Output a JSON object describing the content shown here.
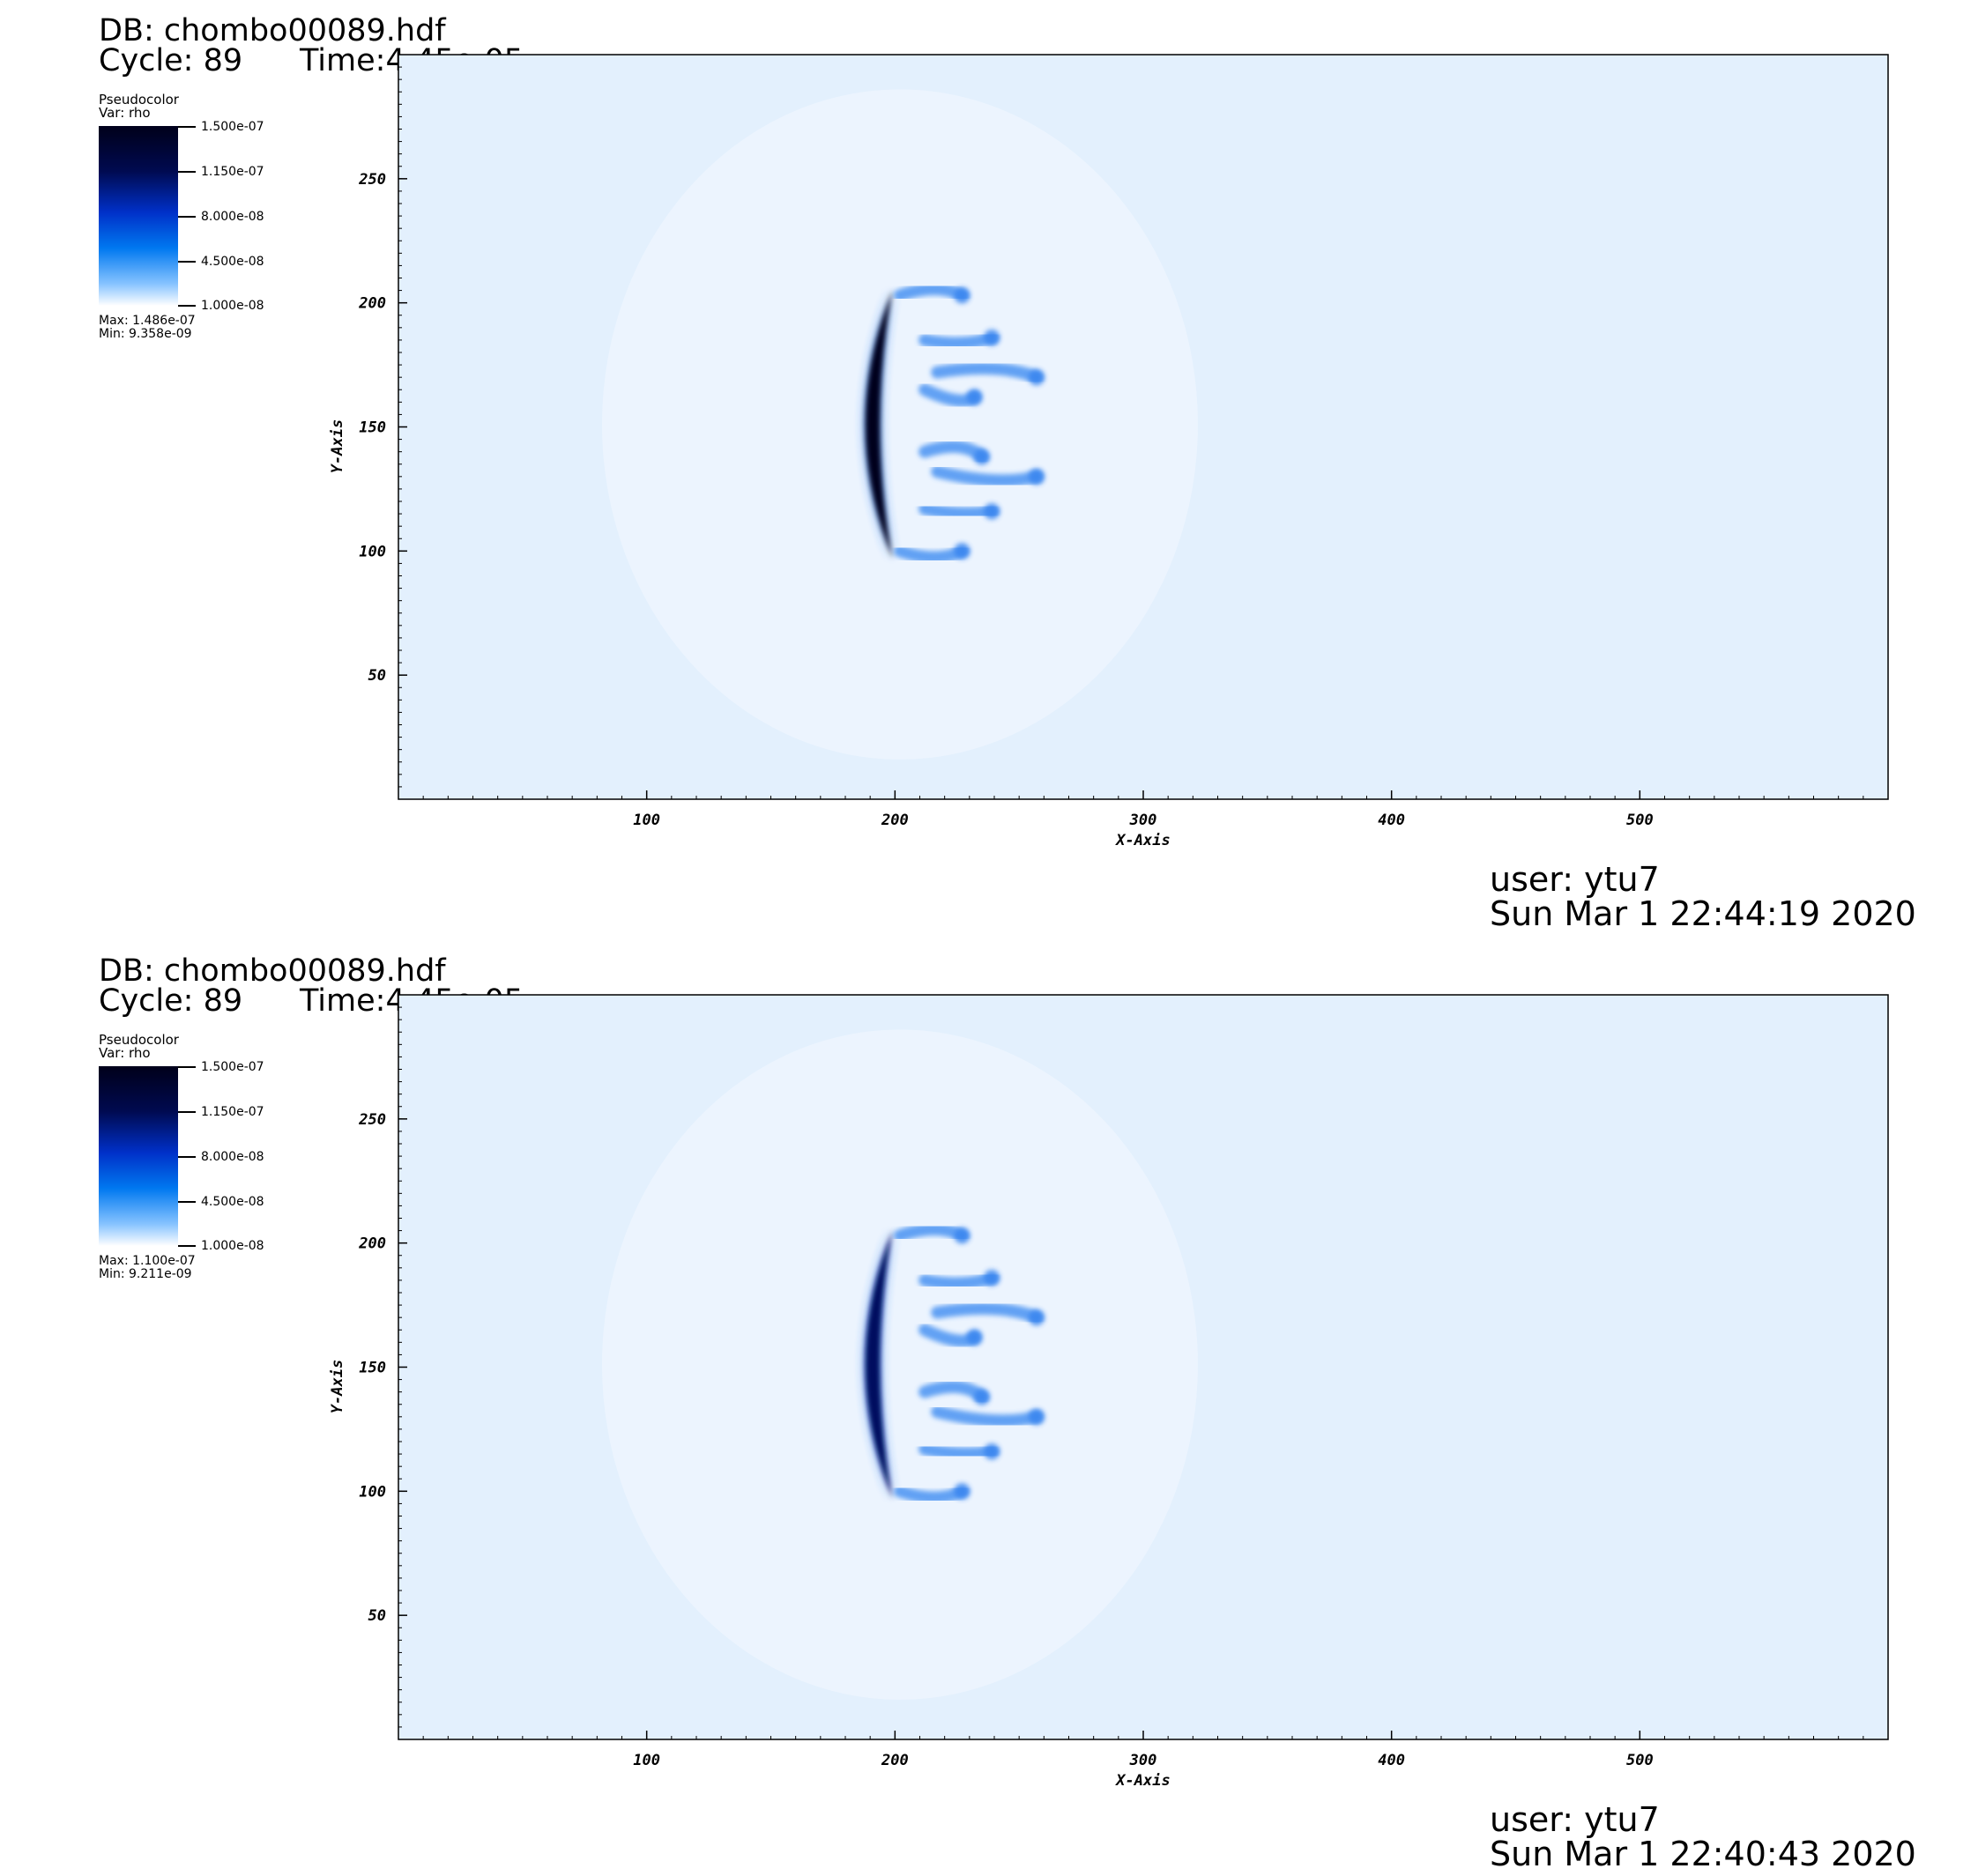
{
  "panels": [
    {
      "db_label": "DB: chombo00089.hdf",
      "cycle_label": "Cycle: 89",
      "time_label": "Time:4.45e-05",
      "legend": {
        "plot_type": "Pseudocolor",
        "var": "Var: rho",
        "ticks": [
          "1.500e-07",
          "1.150e-07",
          "8.000e-08",
          "4.500e-08",
          "1.000e-08"
        ],
        "max_label": "Max:  1.486e-07",
        "min_label": "Min:  9.358e-09"
      },
      "footer": {
        "user": "user: ytu7",
        "date": "Sun Mar  1 22:44:19 2020"
      }
    },
    {
      "db_label": "DB: chombo00089.hdf",
      "cycle_label": "Cycle: 89",
      "time_label": "Time:4.45e-05",
      "legend": {
        "plot_type": "Pseudocolor",
        "var": "Var: rho",
        "ticks": [
          "1.500e-07",
          "1.150e-07",
          "8.000e-08",
          "4.500e-08",
          "1.000e-08"
        ],
        "max_label": "Max:  1.100e-07",
        "min_label": "Min:  9.211e-09"
      },
      "footer": {
        "user": "user: ytu7",
        "date": "Sun Mar  1 22:40:43 2020"
      }
    }
  ],
  "chart_data": [
    {
      "type": "heatmap",
      "title": "",
      "xlabel": "X-Axis",
      "ylabel": "Y-Axis",
      "xlim": [
        0,
        600
      ],
      "ylim": [
        0,
        300
      ],
      "x_ticks": [
        100,
        200,
        300,
        400,
        500
      ],
      "y_ticks": [
        50,
        100,
        150,
        200,
        250
      ],
      "colormap": [
        "#ffffff",
        "#0078f0",
        "#000a50",
        "#00001a"
      ],
      "color_range": [
        1e-08,
        1.5e-07
      ],
      "data_max": 1.486e-07,
      "data_min": 9.358e-09,
      "background_color": "#e3f0fd",
      "feature": {
        "shock_front_x_center": 187,
        "shock_front_y_range": [
          97,
          205
        ],
        "peak_density": 1.486e-07,
        "plumes_x_extent": [
          195,
          265
        ]
      }
    },
    {
      "type": "heatmap",
      "title": "",
      "xlabel": "X-Axis",
      "ylabel": "Y-Axis",
      "xlim": [
        0,
        600
      ],
      "ylim": [
        0,
        300
      ],
      "x_ticks": [
        100,
        200,
        300,
        400,
        500
      ],
      "y_ticks": [
        50,
        100,
        150,
        200,
        250
      ],
      "colormap": [
        "#ffffff",
        "#0078f0",
        "#000a50",
        "#00001a"
      ],
      "color_range": [
        1e-08,
        1.5e-07
      ],
      "data_max": 1.1e-07,
      "data_min": 9.211e-09,
      "background_color": "#e3f0fd",
      "feature": {
        "shock_front_x_center": 187,
        "shock_front_y_range": [
          97,
          205
        ],
        "peak_density": 1.1e-07,
        "plumes_x_extent": [
          195,
          265
        ]
      }
    }
  ]
}
